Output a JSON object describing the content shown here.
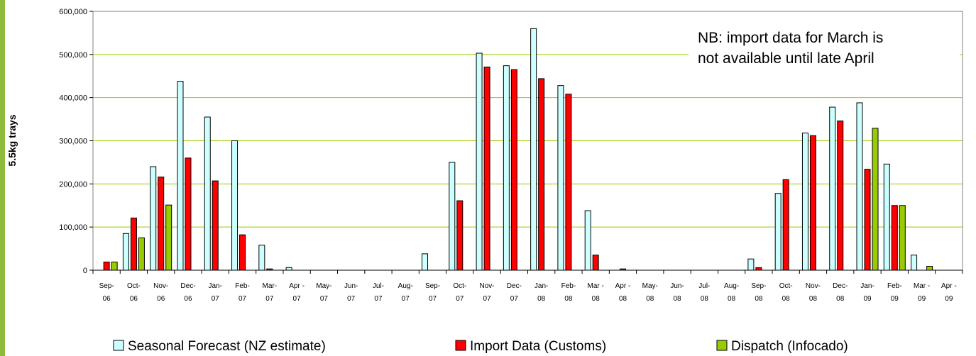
{
  "chart_data": {
    "type": "bar",
    "ylabel": "5.5kg trays",
    "xlabel": "",
    "ylim": [
      0,
      600000
    ],
    "yticks": [
      0,
      100000,
      200000,
      300000,
      400000,
      500000,
      600000
    ],
    "ytick_labels": [
      "0",
      "100,000",
      "200,000",
      "300,000",
      "400,000",
      "500,000",
      "600,000"
    ],
    "grid": "horizontal",
    "legend_position": "bottom",
    "annotation": [
      "NB: import data for March is",
      "not available until late April"
    ],
    "categories": [
      "Sep-06",
      "Oct-06",
      "Nov-06",
      "Dec-06",
      "Jan-07",
      "Feb-07",
      "Mar-07",
      "Apr-07",
      "May-07",
      "Jun-07",
      "Jul-07",
      "Aug-07",
      "Sep-07",
      "Oct-07",
      "Nov-07",
      "Dec-07",
      "Jan-08",
      "Feb-08",
      "Mar-08",
      "Apr-08",
      "May-08",
      "Jun-08",
      "Jul-08",
      "Aug-08",
      "Sep-08",
      "Oct-08",
      "Nov-08",
      "Dec-08",
      "Jan-09",
      "Feb-09",
      "Mar-09",
      "Apr-09"
    ],
    "category_labels": [
      [
        "Sep-",
        "06"
      ],
      [
        "Oct-",
        "06"
      ],
      [
        "Nov-",
        "06"
      ],
      [
        "Dec-",
        "06"
      ],
      [
        "Jan-",
        "07"
      ],
      [
        "Feb-",
        "07"
      ],
      [
        "Mar-",
        "07"
      ],
      [
        "Apr -",
        "07"
      ],
      [
        "May-",
        "07"
      ],
      [
        "Jun-",
        "07"
      ],
      [
        "Jul-",
        "07"
      ],
      [
        "Aug-",
        "07"
      ],
      [
        "Sep-",
        "07"
      ],
      [
        "Oct-",
        "07"
      ],
      [
        "Nov-",
        "07"
      ],
      [
        "Dec-",
        "07"
      ],
      [
        "Jan-",
        "08"
      ],
      [
        "Feb-",
        "08"
      ],
      [
        "Mar -",
        "08"
      ],
      [
        "Apr -",
        "08"
      ],
      [
        "May-",
        "08"
      ],
      [
        "Jun-",
        "08"
      ],
      [
        "Jul-",
        "08"
      ],
      [
        "Aug-",
        "08"
      ],
      [
        "Sep-",
        "08"
      ],
      [
        "Oct-",
        "08"
      ],
      [
        "Nov-",
        "08"
      ],
      [
        "Dec-",
        "08"
      ],
      [
        "Jan-",
        "09"
      ],
      [
        "Feb-",
        "09"
      ],
      [
        "Mar -",
        "09"
      ],
      [
        "Apr -",
        "09"
      ]
    ],
    "series": [
      {
        "name": "Seasonal Forecast (NZ estimate)",
        "color": "#ccffff",
        "values": [
          0,
          85000,
          240000,
          438000,
          355000,
          300000,
          58000,
          6000,
          0,
          0,
          0,
          0,
          38000,
          250000,
          503000,
          474000,
          560000,
          428000,
          138000,
          0,
          0,
          0,
          0,
          0,
          26000,
          178000,
          318000,
          378000,
          388000,
          246000,
          35000,
          0
        ]
      },
      {
        "name": "Import Data (Customs)",
        "color": "#ff0000",
        "values": [
          19000,
          121000,
          216000,
          260000,
          207000,
          82000,
          3000,
          0,
          0,
          0,
          0,
          0,
          0,
          161000,
          471000,
          465000,
          444000,
          408000,
          35000,
          3000,
          0,
          0,
          0,
          0,
          6000,
          210000,
          312000,
          346000,
          234000,
          150000,
          0,
          0
        ]
      },
      {
        "name": "Dispatch (Infocado)",
        "color": "#99cc00",
        "values": [
          19000,
          75000,
          151000,
          0,
          0,
          0,
          0,
          0,
          0,
          0,
          0,
          0,
          0,
          0,
          0,
          0,
          0,
          0,
          0,
          0,
          0,
          0,
          0,
          0,
          0,
          0,
          0,
          0,
          329000,
          150000,
          9000,
          0
        ]
      }
    ]
  }
}
